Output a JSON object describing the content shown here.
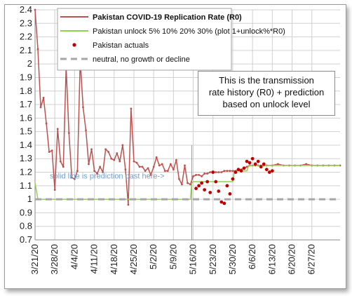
{
  "chart_data": {
    "type": "line",
    "title": "",
    "xlabel": "",
    "ylabel": "",
    "ylim": [
      0.7,
      2.4
    ],
    "yticks": [
      "0.7",
      "0.8",
      "0.9",
      "1",
      "1.1",
      "1.2",
      "1.3",
      "1.4",
      "1.5",
      "1.6",
      "1.7",
      "1.8",
      "1.9",
      "2",
      "2.1",
      "2.2",
      "2.3",
      "2.4"
    ],
    "x_start_day": 0,
    "x_end_day": 108,
    "xticks": [
      {
        "label": "3/21/20",
        "day": 0
      },
      {
        "label": "3/28/20",
        "day": 7
      },
      {
        "label": "4/4/20",
        "day": 14
      },
      {
        "label": "4/11/20",
        "day": 21
      },
      {
        "label": "4/18/20",
        "day": 28
      },
      {
        "label": "4/25/20",
        "day": 35
      },
      {
        "label": "5/2/20",
        "day": 42
      },
      {
        "label": "5/9/20",
        "day": 49
      },
      {
        "label": "5/16/20",
        "day": 56
      },
      {
        "label": "5/23/20",
        "day": 63
      },
      {
        "label": "5/30/20",
        "day": 70
      },
      {
        "label": "6/6/20",
        "day": 77
      },
      {
        "label": "6/13/20",
        "day": 84
      },
      {
        "label": "6/20/20",
        "day": 91
      },
      {
        "label": "6/27/20",
        "day": 98
      }
    ],
    "grid": true,
    "legend_position": "top",
    "series": [
      {
        "name": "Pakistan COVID-19 Replication Rate (R0)",
        "kind": "line",
        "color": "#c0504d",
        "points": [
          [
            0,
            2.4
          ],
          [
            1,
            2.11
          ],
          [
            2,
            1.68
          ],
          [
            3,
            1.75
          ],
          [
            4,
            1.56
          ],
          [
            5,
            1.35
          ],
          [
            6,
            1.36
          ],
          [
            7,
            1.07
          ],
          [
            8,
            1.52
          ],
          [
            9,
            1.28
          ],
          [
            10,
            1.24
          ],
          [
            11,
            1.98
          ],
          [
            12,
            1.49
          ],
          [
            13,
            1.16
          ],
          [
            14,
            1.15
          ],
          [
            15,
            1.21
          ],
          [
            16,
            2.03
          ],
          [
            17,
            1.68
          ],
          [
            18,
            1.51
          ],
          [
            19,
            1.26
          ],
          [
            20,
            1.37
          ],
          [
            21,
            1.21
          ],
          [
            22,
            1.19
          ],
          [
            23,
            1.24
          ],
          [
            24,
            1.2
          ],
          [
            25,
            1.37
          ],
          [
            26,
            1.35
          ],
          [
            27,
            1.3
          ],
          [
            28,
            1.29
          ],
          [
            29,
            1.34
          ],
          [
            30,
            1.28
          ],
          [
            31,
            1.4
          ],
          [
            32,
            1.22
          ],
          [
            33,
            0.96
          ],
          [
            34,
            1.67
          ],
          [
            35,
            1.28
          ],
          [
            36,
            1.27
          ],
          [
            37,
            1.24
          ],
          [
            38,
            1.24
          ],
          [
            39,
            1.21
          ],
          [
            40,
            1.23
          ],
          [
            41,
            1.18
          ],
          [
            42,
            1.24
          ],
          [
            43,
            1.31
          ],
          [
            44,
            1.25
          ],
          [
            45,
            1.26
          ],
          [
            46,
            1.21
          ],
          [
            47,
            1.21
          ],
          [
            48,
            1.26
          ],
          [
            49,
            1.22
          ],
          [
            50,
            1.29
          ],
          [
            51,
            1.15
          ],
          [
            52,
            1.11
          ],
          [
            53,
            1.25
          ],
          [
            54,
            1.12
          ],
          [
            55,
            1.11
          ],
          [
            56,
            1.17
          ],
          [
            57,
            1.18
          ],
          [
            58,
            1.18
          ],
          [
            59,
            1.17
          ],
          [
            60,
            1.19
          ],
          [
            61,
            1.19
          ],
          [
            62,
            1.2
          ],
          [
            63,
            1.2
          ],
          [
            64,
            1.2
          ],
          [
            65,
            1.2
          ],
          [
            66,
            1.2
          ],
          [
            67,
            1.21
          ],
          [
            68,
            1.21
          ],
          [
            69,
            1.21
          ],
          [
            70,
            1.21
          ],
          [
            71,
            1.21
          ],
          [
            72,
            1.22
          ],
          [
            73,
            1.22
          ],
          [
            74,
            1.23
          ],
          [
            75,
            1.24
          ],
          [
            76,
            1.25
          ],
          [
            77,
            1.25
          ],
          [
            78,
            1.25
          ],
          [
            79,
            1.25
          ],
          [
            80,
            1.25
          ],
          [
            81,
            1.25
          ],
          [
            82,
            1.25
          ],
          [
            84,
            1.25
          ],
          [
            86,
            1.26
          ],
          [
            88,
            1.25
          ],
          [
            90,
            1.25
          ],
          [
            92,
            1.25
          ],
          [
            94,
            1.25
          ],
          [
            96,
            1.26
          ],
          [
            98,
            1.25
          ],
          [
            100,
            1.25
          ],
          [
            102,
            1.25
          ],
          [
            104,
            1.25
          ],
          [
            106,
            1.25
          ],
          [
            108,
            1.25
          ]
        ]
      },
      {
        "name": "Pakistan unlock 5% 10% 20% 30% (plot 1+unlock%*R0)",
        "kind": "line",
        "color": "#92d050",
        "points": [
          [
            0,
            1.12
          ],
          [
            1,
            1.0
          ],
          [
            55,
            1.0
          ],
          [
            55.5,
            1.12
          ],
          [
            56,
            1.13
          ],
          [
            70,
            1.13
          ],
          [
            70.5,
            1.2
          ],
          [
            71,
            1.21
          ],
          [
            75,
            1.21
          ],
          [
            75.5,
            1.24
          ],
          [
            76,
            1.25
          ],
          [
            108,
            1.25
          ]
        ]
      },
      {
        "name": "Pakistan actuals",
        "kind": "scatter",
        "color": "#c00000",
        "points": [
          [
            57,
            1.08
          ],
          [
            58,
            1.1
          ],
          [
            59,
            1.12
          ],
          [
            60,
            1.07
          ],
          [
            61,
            1.13
          ],
          [
            62,
            1.05
          ],
          [
            63,
            1.2
          ],
          [
            64,
            1.13
          ],
          [
            65,
            1.06
          ],
          [
            66,
            0.98
          ],
          [
            67,
            0.97
          ],
          [
            68,
            1.1
          ],
          [
            69,
            1.04
          ],
          [
            70,
            1.15
          ],
          [
            71,
            1.2
          ],
          [
            72,
            1.22
          ],
          [
            73,
            1.21
          ],
          [
            74,
            1.23
          ],
          [
            75,
            1.28
          ],
          [
            76,
            1.27
          ],
          [
            77,
            1.3
          ],
          [
            78,
            1.26
          ],
          [
            79,
            1.28
          ],
          [
            80,
            1.24
          ],
          [
            81,
            1.26
          ],
          [
            82,
            1.22
          ],
          [
            83,
            1.2
          ],
          [
            84,
            1.21
          ]
        ]
      },
      {
        "name": "neutral, no growth or decline",
        "kind": "line",
        "dashed": true,
        "color": "#a6a6a6",
        "points": [
          [
            0,
            1.0
          ],
          [
            108,
            1.0
          ]
        ]
      }
    ],
    "vertical_marker": {
      "day": 55.5,
      "color": "#7f9fbf"
    },
    "annotation_inline": "solid line is prediction past here->",
    "annotation_box": [
      "This is the transmission",
      "rate history (R0) + prediction",
      "based on unlock level"
    ]
  }
}
